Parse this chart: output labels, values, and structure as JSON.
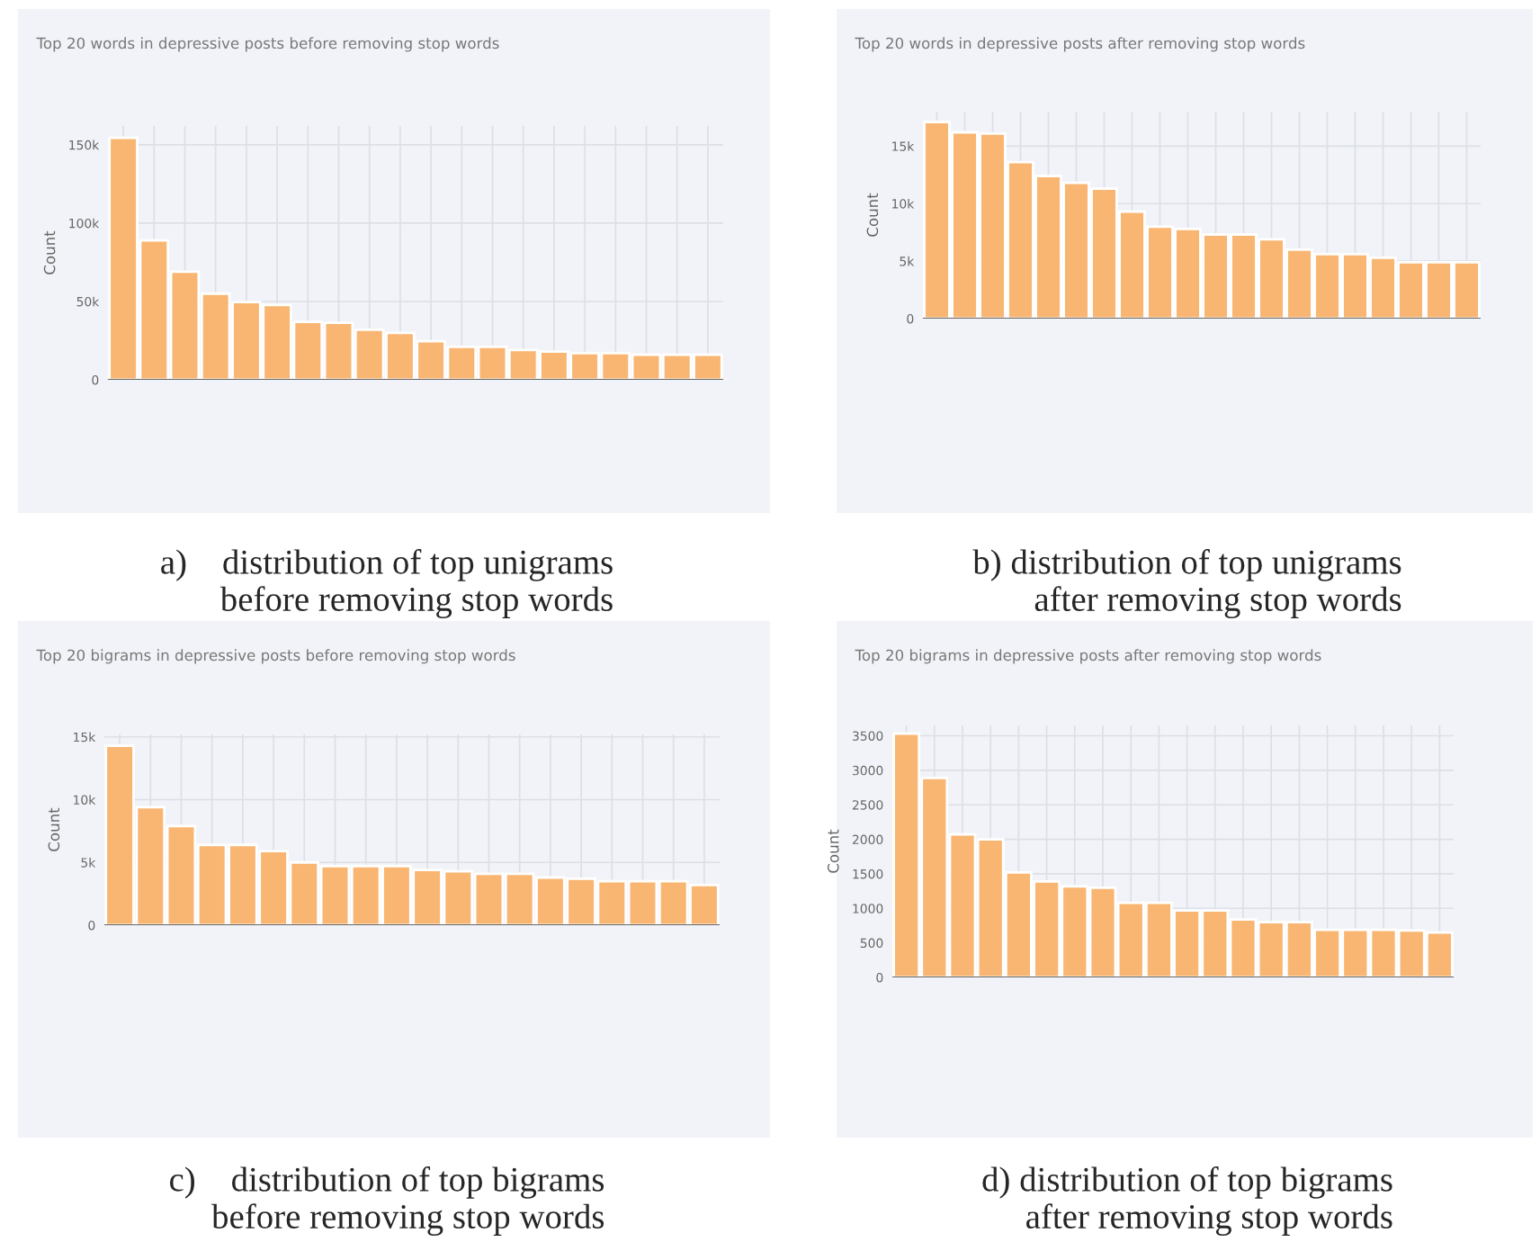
{
  "chart_data": [
    {
      "type": "bar",
      "title": "Top 20 words in depressive posts before removing stop words",
      "ylabel": "Count",
      "color": "#f9b672",
      "categories": [
        null,
        null,
        null,
        null,
        null,
        null,
        null,
        null,
        null,
        null,
        null,
        null,
        null,
        null,
        null,
        null,
        null,
        null,
        null,
        null
      ],
      "values": [
        154500,
        89000,
        69000,
        55000,
        49600,
        47700,
        37000,
        36400,
        32000,
        30000,
        24600,
        21000,
        21000,
        19000,
        18000,
        17000,
        17000,
        16000,
        16000,
        16000
      ],
      "ylim": [
        0,
        162000
      ],
      "yticks": [
        0,
        {
          "value": 50000,
          "label": "50k"
        },
        {
          "value": 100000,
          "label": "100k"
        },
        {
          "value": 150000,
          "label": "150k"
        }
      ],
      "grid": true,
      "annotations": [
        "a)    distribution of top unigrams\nbefore removing stop words"
      ]
    },
    {
      "type": "bar",
      "title": "Top 20 words in depressive posts after removing stop words",
      "ylabel": "Count",
      "color": "#f9b672",
      "categories": [
        null,
        null,
        null,
        null,
        null,
        null,
        null,
        null,
        null,
        null,
        null,
        null,
        null,
        null,
        null,
        null,
        null,
        null,
        null,
        null
      ],
      "values": [
        17100,
        16200,
        16100,
        13600,
        12400,
        11800,
        11300,
        9300,
        8000,
        7800,
        7300,
        7300,
        6900,
        6000,
        5600,
        5600,
        5300,
        4900,
        4900,
        4900
      ],
      "ylim": [
        0,
        18000
      ],
      "yticks": [
        0,
        {
          "value": 5000,
          "label": "5k"
        },
        {
          "value": 10000,
          "label": "10k"
        },
        {
          "value": 15000,
          "label": "15k"
        }
      ],
      "grid": true,
      "annotations": [
        "b) distribution of top unigrams\nafter removing stop words"
      ]
    },
    {
      "type": "bar",
      "title": "Top 20 bigrams in depressive posts before removing stop words",
      "ylabel": "Count",
      "color": "#f9b672",
      "categories": [
        null,
        null,
        null,
        null,
        null,
        null,
        null,
        null,
        null,
        null,
        null,
        null,
        null,
        null,
        null,
        null,
        null,
        null,
        null,
        null
      ],
      "values": [
        14300,
        9400,
        7900,
        6400,
        6400,
        5900,
        5000,
        4700,
        4700,
        4700,
        4400,
        4300,
        4100,
        4100,
        3800,
        3700,
        3500,
        3500,
        3500,
        3200
      ],
      "ylim": [
        0,
        15200
      ],
      "yticks": [
        0,
        {
          "value": 5000,
          "label": "5k"
        },
        {
          "value": 10000,
          "label": "10k"
        },
        {
          "value": 15000,
          "label": "15k"
        }
      ],
      "grid": true,
      "annotations": [
        "c)    distribution of top bigrams\nbefore removing stop words"
      ]
    },
    {
      "type": "bar",
      "title": "Top 20 bigrams in depressive posts after removing stop words",
      "ylabel": "Count",
      "color": "#f9b672",
      "categories": [
        null,
        null,
        null,
        null,
        null,
        null,
        null,
        null,
        null,
        null,
        null,
        null,
        null,
        null,
        null,
        null,
        null,
        null,
        null,
        null
      ],
      "values": [
        3530,
        2890,
        2070,
        2000,
        1520,
        1390,
        1320,
        1300,
        1080,
        1080,
        970,
        970,
        840,
        800,
        800,
        690,
        690,
        690,
        680,
        650
      ],
      "ylim": [
        0,
        3650
      ],
      "yticks": [
        0,
        500,
        1000,
        1500,
        2000,
        2500,
        3000,
        3500
      ],
      "grid": true,
      "annotations": [
        "d) distribution of top bigrams\nafter removing stop words"
      ]
    }
  ]
}
